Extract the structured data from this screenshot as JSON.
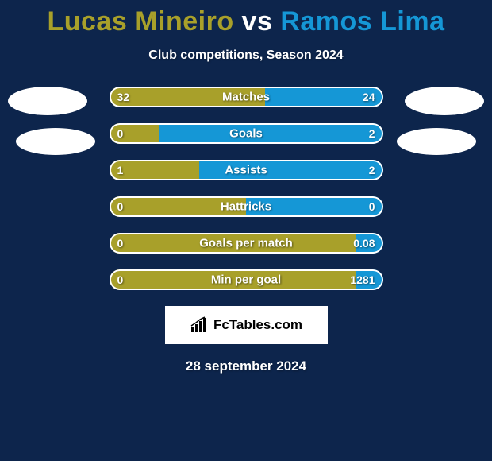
{
  "background_color": "#0d254c",
  "title": {
    "player1": "Lucas Mineiro",
    "vs": "vs",
    "player2": "Ramos Lima",
    "color_player1": "#a8a02a",
    "color_vs": "#ffffff",
    "color_player2": "#1597d6"
  },
  "subtitle": "Club competitions, Season 2024",
  "player1_color": "#a8a02a",
  "player2_color": "#1597d6",
  "bar_border_color": "#ffffff",
  "avatar_color": "#ffffff",
  "stats": [
    {
      "label": "Matches",
      "left_val": "32",
      "right_val": "24",
      "left_pct": 57
    },
    {
      "label": "Goals",
      "left_val": "0",
      "right_val": "2",
      "left_pct": 18
    },
    {
      "label": "Assists",
      "left_val": "1",
      "right_val": "2",
      "left_pct": 33
    },
    {
      "label": "Hattricks",
      "left_val": "0",
      "right_val": "0",
      "left_pct": 50
    },
    {
      "label": "Goals per match",
      "left_val": "0",
      "right_val": "0.08",
      "left_pct": 90
    },
    {
      "label": "Min per goal",
      "left_val": "0",
      "right_val": "1281",
      "left_pct": 90
    }
  ],
  "logo_text": "FcTables.com",
  "date_text": "28 september 2024"
}
